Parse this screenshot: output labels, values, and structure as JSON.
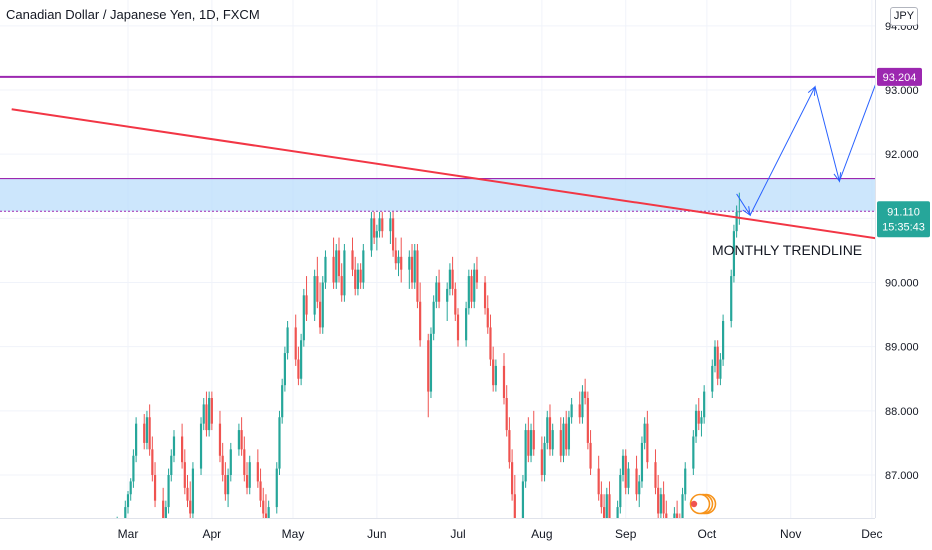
{
  "header": {
    "title": "Canadian Dollar / Japanese Yen, 1D, FXCM",
    "currency": "JPY"
  },
  "chart_data": {
    "type": "candlestick",
    "y_axis": {
      "ticks": [
        "87.000",
        "88.000",
        "89.000",
        "90.000",
        "91.000",
        "92.000",
        "93.000",
        "94.000"
      ],
      "ylim": [
        86.1,
        94.2
      ]
    },
    "x_axis": {
      "ticks": [
        "Mar",
        "Apr",
        "May",
        "Jun",
        "Jul",
        "Aug",
        "Sep",
        "Oct",
        "Nov",
        "Dec"
      ]
    },
    "price_labels": {
      "resistance": {
        "value": 93.204,
        "label": "93.204",
        "color": "#9c27b0"
      },
      "last": {
        "value": 91.11,
        "label": "91.110",
        "countdown": "15:35:43",
        "color": "#26a69a"
      }
    },
    "zone": {
      "low": 91.11,
      "high": 91.62,
      "fill": "#bbdefb"
    },
    "trendline": {
      "label": "MONTHLY TRENDLINE",
      "color": "#f23645",
      "start": [
        "Jan 17",
        92.7
      ],
      "end": [
        "Dec 31",
        90.51
      ]
    },
    "projection_path": [
      [
        "Oct 12",
        91.38
      ],
      [
        "Oct 17",
        91.05
      ],
      [
        "Nov 10",
        93.05
      ],
      [
        "Nov 19",
        91.58
      ],
      [
        "Dec 10",
        93.95
      ]
    ],
    "colors": {
      "up": "#26a69a",
      "down": "#ef5350",
      "projection": "#2962ff"
    },
    "candles": [
      [
        "Feb 25",
        86.0,
        86.35,
        85.95,
        86.3
      ],
      [
        "Feb 28",
        86.3,
        86.6,
        86.2,
        86.5
      ],
      [
        "Mar 1",
        86.5,
        86.75,
        86.4,
        86.7
      ],
      [
        "Mar 2",
        86.7,
        86.95,
        86.6,
        86.9
      ],
      [
        "Mar 3",
        86.9,
        87.4,
        86.8,
        87.3
      ],
      [
        "Mar 4",
        87.3,
        87.9,
        87.2,
        87.8
      ],
      [
        "Mar 7",
        87.8,
        87.95,
        87.4,
        87.5
      ],
      [
        "Mar 8",
        87.5,
        88.0,
        87.4,
        87.9
      ],
      [
        "Mar 9",
        87.9,
        88.1,
        87.3,
        87.4
      ],
      [
        "Mar 10",
        87.4,
        87.6,
        86.9,
        87.0
      ],
      [
        "Mar 11",
        87.0,
        87.2,
        86.5,
        86.6
      ],
      [
        "Mar 14",
        86.6,
        86.8,
        86.2,
        86.3
      ],
      [
        "Mar 15",
        86.3,
        86.6,
        86.1,
        86.5
      ],
      [
        "Mar 16",
        86.5,
        87.1,
        86.4,
        87.0
      ],
      [
        "Mar 17",
        87.0,
        87.4,
        86.9,
        87.3
      ],
      [
        "Mar 18",
        87.3,
        87.7,
        87.2,
        87.6
      ],
      [
        "Mar 21",
        87.6,
        87.8,
        87.1,
        87.2
      ],
      [
        "Mar 22",
        87.2,
        87.4,
        86.7,
        86.8
      ],
      [
        "Mar 23",
        86.8,
        87.0,
        86.5,
        86.6
      ],
      [
        "Mar 24",
        86.6,
        86.9,
        86.3,
        86.4
      ],
      [
        "Mar 25",
        86.4,
        87.2,
        86.3,
        87.1
      ],
      [
        "Mar 28",
        87.1,
        87.9,
        87.0,
        87.8
      ],
      [
        "Mar 29",
        87.8,
        88.2,
        87.7,
        88.1
      ],
      [
        "Mar 30",
        88.1,
        88.3,
        87.6,
        87.7
      ],
      [
        "Mar 31",
        87.7,
        88.3,
        87.6,
        88.2
      ],
      [
        "Apr 1",
        88.2,
        88.3,
        87.7,
        87.8
      ],
      [
        "Apr 4",
        87.8,
        88.0,
        87.2,
        87.3
      ],
      [
        "Apr 5",
        87.3,
        87.5,
        86.9,
        87.0
      ],
      [
        "Apr 6",
        87.0,
        87.2,
        86.6,
        86.7
      ],
      [
        "Apr 7",
        86.7,
        87.1,
        86.5,
        87.0
      ],
      [
        "Apr 8",
        87.0,
        87.5,
        86.9,
        87.4
      ],
      [
        "Apr 11",
        87.4,
        87.8,
        87.3,
        87.7
      ],
      [
        "Apr 12",
        87.7,
        87.9,
        87.3,
        87.4
      ],
      [
        "Apr 13",
        87.4,
        87.6,
        86.9,
        87.0
      ],
      [
        "Apr 14",
        87.0,
        87.2,
        86.7,
        86.8
      ],
      [
        "Apr 15",
        86.8,
        87.3,
        86.7,
        87.2
      ],
      [
        "Apr 18",
        87.2,
        87.4,
        86.8,
        86.9
      ],
      [
        "Apr 19",
        86.9,
        87.1,
        86.5,
        86.6
      ],
      [
        "Apr 20",
        86.6,
        86.8,
        86.3,
        86.4
      ],
      [
        "Apr 21",
        86.4,
        86.7,
        86.2,
        86.3
      ],
      [
        "Apr 22",
        86.3,
        86.6,
        86.1,
        86.5
      ],
      [
        "Apr 25",
        86.5,
        87.2,
        86.4,
        87.1
      ],
      [
        "Apr 26",
        87.1,
        88.0,
        87.0,
        87.9
      ],
      [
        "Apr 27",
        87.9,
        88.5,
        87.8,
        88.4
      ],
      [
        "Apr 28",
        88.4,
        89.0,
        88.3,
        88.9
      ],
      [
        "Apr 29",
        88.9,
        89.4,
        88.8,
        89.3
      ],
      [
        "May 2",
        89.3,
        89.5,
        88.7,
        88.8
      ],
      [
        "May 3",
        88.8,
        89.0,
        88.4,
        88.5
      ],
      [
        "May 4",
        88.5,
        89.2,
        88.4,
        89.1
      ],
      [
        "May 5",
        89.1,
        89.9,
        89.0,
        89.8
      ],
      [
        "May 6",
        89.8,
        90.1,
        89.4,
        89.5
      ],
      [
        "May 9",
        89.5,
        90.2,
        89.4,
        90.1
      ],
      [
        "May 10",
        90.1,
        90.4,
        89.6,
        89.7
      ],
      [
        "May 11",
        89.7,
        90.0,
        89.2,
        89.3
      ],
      [
        "May 12",
        89.3,
        90.1,
        89.2,
        90.0
      ],
      [
        "May 13",
        90.0,
        90.5,
        89.9,
        90.4
      ],
      [
        "May 16",
        90.4,
        90.7,
        89.9,
        90.0
      ],
      [
        "May 17",
        90.0,
        90.6,
        89.9,
        90.5
      ],
      [
        "May 18",
        90.5,
        90.7,
        90.0,
        90.1
      ],
      [
        "May 19",
        90.1,
        90.3,
        89.7,
        89.8
      ],
      [
        "May 20",
        89.8,
        90.6,
        89.7,
        90.5
      ],
      [
        "May 23",
        90.5,
        90.7,
        90.1,
        90.2
      ],
      [
        "May 24",
        90.2,
        90.4,
        89.8,
        89.9
      ],
      [
        "May 25",
        89.9,
        90.3,
        89.8,
        90.2
      ],
      [
        "May 26",
        90.2,
        90.3,
        89.9,
        90.0
      ],
      [
        "May 27",
        90.0,
        90.6,
        89.9,
        90.5
      ],
      [
        "May 30",
        90.5,
        91.1,
        90.4,
        91.0
      ],
      [
        "May 31",
        91.0,
        91.1,
        90.6,
        90.7
      ],
      [
        "Jun 1",
        90.7,
        90.9,
        90.5,
        90.8
      ],
      [
        "Jun 2",
        90.8,
        91.1,
        90.7,
        91.0
      ],
      [
        "Jun 3",
        91.0,
        91.1,
        90.7,
        90.8
      ],
      [
        "Jun 6",
        90.8,
        91.1,
        90.6,
        91.0
      ],
      [
        "Jun 7",
        91.0,
        91.1,
        90.4,
        90.5
      ],
      [
        "Jun 8",
        90.5,
        90.7,
        90.2,
        90.3
      ],
      [
        "Jun 9",
        90.3,
        90.5,
        90.1,
        90.4
      ],
      [
        "Jun 10",
        90.4,
        90.7,
        90.0,
        90.2
      ],
      [
        "Jun 13",
        90.2,
        90.5,
        89.9,
        90.4
      ],
      [
        "Jun 14",
        90.4,
        90.6,
        89.9,
        90.0
      ],
      [
        "Jun 15",
        90.0,
        90.6,
        89.9,
        90.5
      ],
      [
        "Jun 16",
        90.5,
        90.6,
        89.6,
        89.7
      ],
      [
        "Jun 17",
        89.7,
        90.0,
        89.0,
        89.1
      ],
      [
        "Jun 20",
        89.1,
        89.2,
        87.9,
        88.3
      ],
      [
        "Jun 21",
        88.3,
        89.3,
        88.2,
        89.2
      ],
      [
        "Jun 22",
        89.2,
        89.8,
        89.1,
        89.7
      ],
      [
        "Jun 23",
        89.7,
        90.1,
        89.6,
        90.0
      ],
      [
        "Jun 24",
        90.0,
        90.2,
        89.6,
        89.7
      ],
      [
        "Jun 27",
        89.7,
        90.0,
        89.4,
        89.9
      ],
      [
        "Jun 28",
        89.9,
        90.3,
        89.8,
        90.2
      ],
      [
        "Jun 29",
        90.2,
        90.4,
        89.8,
        89.9
      ],
      [
        "Jun 30",
        89.9,
        90.0,
        89.4,
        89.5
      ],
      [
        "Jul 1",
        89.5,
        89.6,
        89.0,
        89.1
      ],
      [
        "Jul 4",
        89.1,
        89.7,
        89.0,
        89.6
      ],
      [
        "Jul 5",
        89.6,
        90.2,
        89.5,
        90.1
      ],
      [
        "Jul 6",
        90.1,
        90.2,
        89.6,
        89.7
      ],
      [
        "Jul 7",
        89.7,
        90.3,
        89.6,
        90.2
      ],
      [
        "Jul 8",
        90.2,
        90.4,
        89.9,
        90.0
      ],
      [
        "Jul 11",
        90.0,
        90.1,
        89.5,
        89.6
      ],
      [
        "Jul 12",
        89.6,
        89.8,
        89.2,
        89.3
      ],
      [
        "Jul 13",
        89.3,
        89.5,
        88.7,
        88.8
      ],
      [
        "Jul 14",
        88.8,
        89.0,
        88.3,
        88.4
      ],
      [
        "Jul 15",
        88.4,
        88.8,
        88.3,
        88.7
      ],
      [
        "Jul 18",
        88.7,
        88.9,
        88.1,
        88.2
      ],
      [
        "Jul 19",
        88.2,
        88.4,
        87.6,
        87.7
      ],
      [
        "Jul 20",
        87.7,
        87.9,
        87.1,
        87.2
      ],
      [
        "Jul 21",
        87.2,
        87.4,
        86.6,
        86.7
      ],
      [
        "Jul 22",
        86.7,
        87.0,
        86.2,
        86.3
      ],
      [
        "Jul 25",
        86.3,
        87.0,
        86.2,
        86.9
      ],
      [
        "Jul 26",
        86.9,
        87.8,
        86.8,
        87.7
      ],
      [
        "Jul 27",
        87.7,
        87.9,
        87.2,
        87.3
      ],
      [
        "Jul 28",
        87.3,
        87.8,
        87.2,
        87.7
      ],
      [
        "Jul 29",
        87.7,
        88.0,
        87.3,
        87.4
      ],
      [
        "Aug 1",
        87.4,
        87.6,
        86.9,
        87.0
      ],
      [
        "Aug 2",
        87.0,
        87.6,
        86.9,
        87.5
      ],
      [
        "Aug 3",
        87.5,
        88.0,
        87.4,
        87.9
      ],
      [
        "Aug 4",
        87.9,
        88.1,
        87.3,
        87.4
      ],
      [
        "Aug 5",
        87.4,
        87.8,
        87.3,
        87.7
      ],
      [
        "Aug 8",
        87.7,
        87.9,
        87.2,
        87.3
      ],
      [
        "Aug 9",
        87.3,
        87.9,
        87.2,
        87.8
      ],
      [
        "Aug 10",
        87.8,
        88.0,
        87.3,
        87.4
      ],
      [
        "Aug 11",
        87.4,
        88.0,
        87.3,
        87.9
      ],
      [
        "Aug 12",
        87.9,
        88.2,
        87.8,
        88.1
      ],
      [
        "Aug 15",
        88.1,
        88.3,
        87.8,
        87.9
      ],
      [
        "Aug 16",
        87.9,
        88.4,
        87.8,
        88.3
      ],
      [
        "Aug 17",
        88.3,
        88.5,
        88.1,
        88.2
      ],
      [
        "Aug 18",
        88.2,
        88.3,
        87.4,
        87.5
      ],
      [
        "Aug 19",
        87.5,
        87.7,
        87.0,
        87.1
      ],
      [
        "Aug 22",
        87.1,
        87.3,
        86.6,
        86.7
      ],
      [
        "Aug 23",
        86.7,
        86.9,
        86.4,
        86.5
      ],
      [
        "Aug 24",
        86.5,
        86.7,
        86.2,
        86.3
      ],
      [
        "Aug 25",
        86.3,
        86.8,
        86.2,
        86.7
      ],
      [
        "Aug 26",
        86.7,
        86.9,
        86.1,
        86.2
      ],
      [
        "Aug 29",
        86.2,
        86.6,
        86.1,
        86.5
      ],
      [
        "Aug 30",
        86.5,
        87.1,
        86.4,
        87.0
      ],
      [
        "Aug 31",
        87.0,
        87.4,
        86.9,
        87.3
      ],
      [
        "Sep 1",
        87.3,
        87.4,
        86.7,
        86.8
      ],
      [
        "Sep 2",
        86.8,
        87.2,
        86.7,
        87.1
      ],
      [
        "Sep 5",
        87.1,
        87.3,
        86.6,
        86.7
      ],
      [
        "Sep 6",
        86.7,
        87.0,
        86.5,
        86.9
      ],
      [
        "Sep 7",
        86.9,
        87.6,
        86.8,
        87.5
      ],
      [
        "Sep 8",
        87.5,
        87.9,
        87.4,
        87.8
      ],
      [
        "Sep 9",
        87.8,
        88.0,
        87.1,
        87.2
      ],
      [
        "Sep 12",
        87.2,
        87.4,
        86.7,
        86.8
      ],
      [
        "Sep 13",
        86.8,
        87.0,
        86.3,
        86.4
      ],
      [
        "Sep 14",
        86.4,
        86.8,
        86.3,
        86.7
      ],
      [
        "Sep 15",
        86.7,
        86.9,
        86.3,
        86.4
      ],
      [
        "Sep 16",
        86.4,
        86.6,
        86.1,
        86.2
      ],
      [
        "Sep 19",
        86.2,
        86.5,
        86.05,
        86.4
      ],
      [
        "Sep 20",
        86.4,
        86.6,
        86.1,
        86.2
      ],
      [
        "Sep 21",
        86.2,
        86.4,
        86.05,
        86.1
      ],
      [
        "Sep 22",
        86.1,
        86.8,
        86.0,
        86.7
      ],
      [
        "Sep 23",
        86.7,
        87.2,
        86.6,
        87.1
      ],
      [
        "Sep 26",
        87.1,
        87.7,
        87.0,
        87.6
      ],
      [
        "Sep 27",
        87.6,
        88.1,
        87.5,
        88.0
      ],
      [
        "Sep 28",
        88.0,
        88.2,
        87.7,
        87.8
      ],
      [
        "Sep 29",
        87.8,
        88.0,
        87.6,
        87.9
      ],
      [
        "Sep 30",
        87.9,
        88.4,
        87.8,
        88.3
      ],
      [
        "Oct 3",
        88.3,
        88.8,
        88.2,
        88.7
      ],
      [
        "Oct 4",
        88.7,
        89.1,
        88.6,
        89.0
      ],
      [
        "Oct 5",
        89.0,
        89.1,
        88.4,
        88.5
      ],
      [
        "Oct 6",
        88.5,
        88.9,
        88.4,
        88.8
      ],
      [
        "Oct 7",
        88.8,
        89.5,
        88.7,
        89.4
      ],
      [
        "Oct 10",
        89.4,
        90.2,
        89.3,
        90.1
      ],
      [
        "Oct 11",
        90.1,
        90.9,
        90.0,
        90.8
      ],
      [
        "Oct 12",
        90.8,
        91.2,
        90.7,
        91.1
      ],
      [
        "Oct 13",
        91.1,
        91.4,
        90.9,
        91.11
      ]
    ]
  }
}
